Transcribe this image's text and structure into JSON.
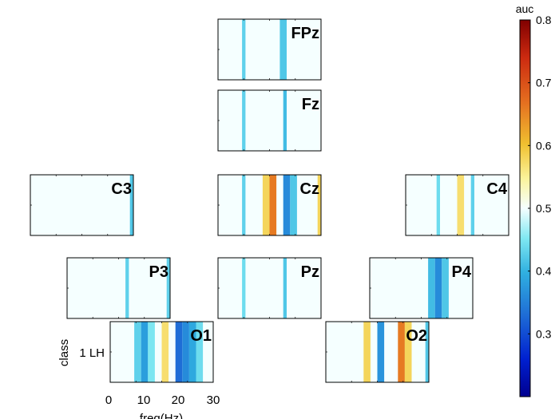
{
  "chart_data": {
    "type": "heatmap",
    "description_units": "frequency bins in Hz; single class row; values are AUC",
    "panels": [
      {
        "name": "FPz",
        "cells": [
          [
            7,
            8,
            0.43
          ],
          [
            18,
            20,
            0.42
          ]
        ]
      },
      {
        "name": "Fz",
        "cells": [
          [
            7,
            8,
            0.43
          ],
          [
            19,
            20,
            0.41
          ]
        ]
      },
      {
        "name": "C3",
        "cells": [
          [
            29,
            30,
            0.42
          ]
        ]
      },
      {
        "name": "Cz",
        "cells": [
          [
            7,
            8,
            0.43
          ],
          [
            13,
            15,
            0.58
          ],
          [
            15,
            17,
            0.66
          ],
          [
            19,
            21,
            0.36
          ],
          [
            21,
            23,
            0.42
          ],
          [
            29,
            30,
            0.58
          ]
        ]
      },
      {
        "name": "C4",
        "cells": [
          [
            9,
            10,
            0.44
          ],
          [
            15,
            17,
            0.57
          ],
          [
            19,
            20,
            0.43
          ]
        ]
      },
      {
        "name": "P3",
        "cells": [
          [
            17,
            18,
            0.43
          ],
          [
            29,
            30,
            0.43
          ]
        ]
      },
      {
        "name": "Pz",
        "cells": [
          [
            7,
            8,
            0.44
          ],
          [
            19,
            20,
            0.42
          ]
        ]
      },
      {
        "name": "P4",
        "cells": [
          [
            17,
            19,
            0.41
          ],
          [
            19,
            21,
            0.36
          ],
          [
            21,
            23,
            0.42
          ]
        ]
      },
      {
        "name": "O1",
        "cells": [
          [
            7,
            9,
            0.43
          ],
          [
            9,
            11,
            0.38
          ],
          [
            11,
            13,
            0.45
          ],
          [
            15,
            17,
            0.57
          ],
          [
            19,
            21,
            0.33
          ],
          [
            21,
            23,
            0.36
          ],
          [
            23,
            25,
            0.39
          ],
          [
            25,
            27,
            0.44
          ]
        ]
      },
      {
        "name": "O2",
        "cells": [
          [
            11,
            13,
            0.58
          ],
          [
            15,
            17,
            0.37
          ],
          [
            21,
            23,
            0.66
          ],
          [
            23,
            25,
            0.58
          ],
          [
            29,
            30,
            0.42
          ]
        ]
      }
    ],
    "background_value": 0.5,
    "x_range": [
      0,
      30
    ],
    "xticks": [
      0,
      10,
      20,
      30
    ],
    "xlabel": "freq(Hz)",
    "ylabel": "class",
    "yticks": [
      "1 LH"
    ],
    "colorbar": {
      "label": "auc",
      "range": [
        0.2,
        0.8
      ],
      "ticks": [
        "0.3",
        "0.4",
        "0.5",
        "0.6",
        "0.7",
        "0.8"
      ],
      "colormap": "jet-diverging"
    }
  }
}
